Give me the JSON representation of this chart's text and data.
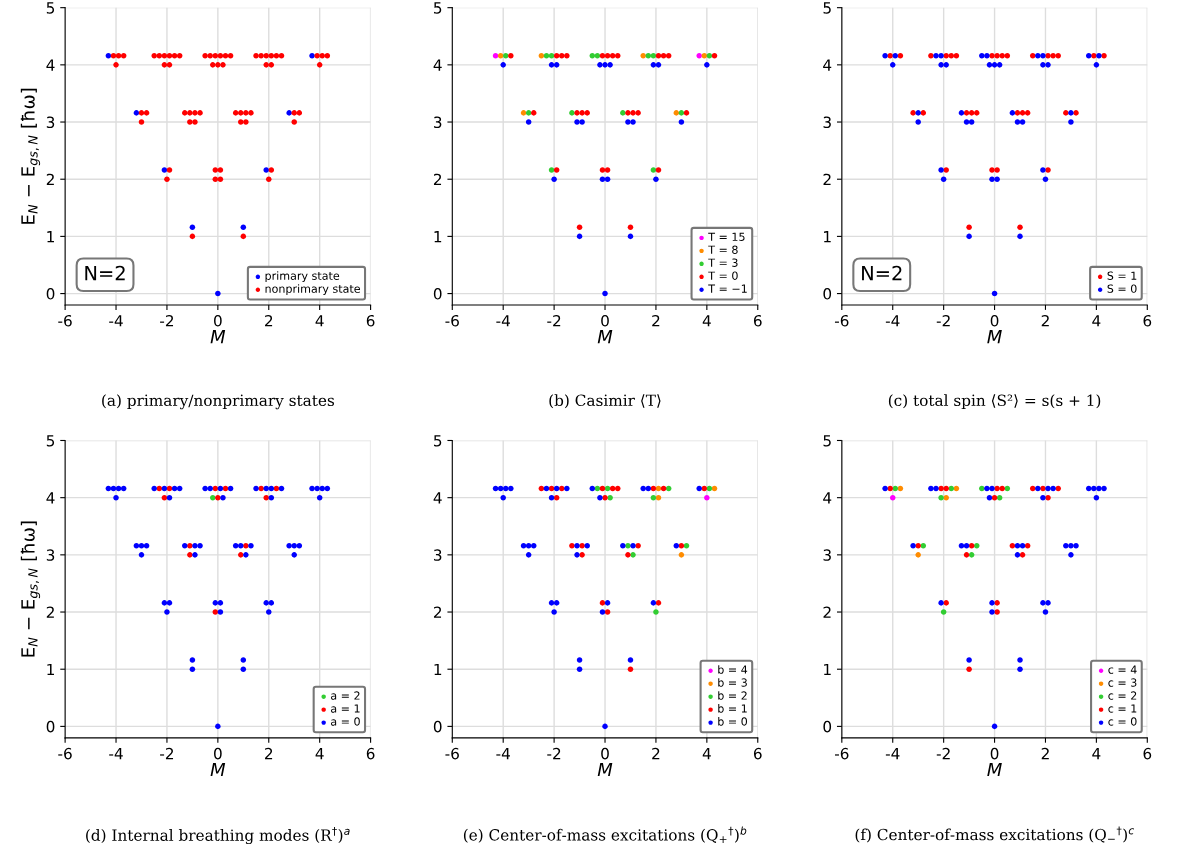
{
  "chart_data": [
    {
      "type": "scatter",
      "title": "(a) primary/nonprimary states",
      "xlabel": "M",
      "ylabel": "E$_{N}$ − E$_{gs,N}$ [ħω]",
      "xlim": [
        -6,
        6
      ],
      "ylim": [
        -0.2,
        5
      ],
      "xticks": [
        -6,
        -4,
        -2,
        0,
        2,
        4,
        6
      ],
      "yticks": [
        0,
        1,
        2,
        3,
        4,
        5
      ],
      "grid": true,
      "legend": "bottom right",
      "marker": "circle",
      "annotations": [
        "N=2"
      ],
      "series": [
        {
          "name": "primary state",
          "color": "#0000ff",
          "x": [
            0,
            -1,
            1,
            -2.1,
            1.9,
            -3.2,
            2.8,
            -4.3,
            3.7
          ],
          "values": [
            0,
            1.16,
            1.16,
            2.16,
            2.16,
            3.16,
            3.16,
            4.16,
            4.16
          ]
        },
        {
          "name": "nonprimary state",
          "color": "#ff0000",
          "x": [
            -1,
            1,
            -1.9,
            -0.1,
            0.1,
            2.1,
            -2,
            -0.1,
            0.1,
            2,
            -3,
            -2.8,
            -1.3,
            -1.1,
            -0.9,
            -0.7,
            0.7,
            0.9,
            1.1,
            1.3,
            3,
            3.2,
            -3,
            -1.1,
            -0.9,
            0.9,
            1.1,
            3,
            -4.1,
            -3.9,
            -3.7,
            -2.5,
            -2.3,
            -2.1,
            -1.9,
            -1.7,
            -1.5,
            -0.5,
            -0.3,
            -0.1,
            0.1,
            0.3,
            0.5,
            1.5,
            1.7,
            1.9,
            2.1,
            2.3,
            2.5,
            3.9,
            4.1,
            4.3,
            -4,
            -2.1,
            -1.9,
            -0.2,
            0,
            0.2,
            1.9,
            2.1,
            4
          ],
          "values": [
            1,
            1,
            2.16,
            2.16,
            2.16,
            2.16,
            2,
            2,
            2,
            2,
            3.16,
            3.16,
            3.16,
            3.16,
            3.16,
            3.16,
            3.16,
            3.16,
            3.16,
            3.16,
            3.16,
            3.16,
            3,
            3,
            3,
            3,
            3,
            3,
            4.16,
            4.16,
            4.16,
            4.16,
            4.16,
            4.16,
            4.16,
            4.16,
            4.16,
            4.16,
            4.16,
            4.16,
            4.16,
            4.16,
            4.16,
            4.16,
            4.16,
            4.16,
            4.16,
            4.16,
            4.16,
            4.16,
            4.16,
            4.16,
            4,
            4,
            4,
            4,
            4,
            4,
            4,
            4,
            4
          ]
        }
      ]
    },
    {
      "type": "scatter",
      "title": "(b) Casimir ⟨T⟩",
      "xlabel": "M",
      "xlim": [
        -6,
        6
      ],
      "ylim": [
        -0.2,
        5
      ],
      "xticks": [
        -6,
        -4,
        -2,
        0,
        2,
        4,
        6
      ],
      "yticks": [
        0,
        1,
        2,
        3,
        4,
        5
      ],
      "grid": true,
      "legend": "bottom right",
      "marker": "circle",
      "series": [
        {
          "name": "T = 15",
          "color": "#ff00ff",
          "x": [
            -4.3,
            3.7
          ],
          "values": [
            4.16,
            4.16
          ]
        },
        {
          "name": "T = 8",
          "color": "#ff8c00",
          "x": [
            -4.1,
            -2.5,
            1.5,
            3.9,
            -3.2,
            2.8
          ],
          "values": [
            4.16,
            4.16,
            4.16,
            4.16,
            3.16,
            3.16
          ]
        },
        {
          "name": "T = 3",
          "color": "#32cd32",
          "x": [
            -3.9,
            -2.3,
            -2.1,
            -0.5,
            -0.3,
            1.7,
            1.9,
            4.1,
            -3,
            -1.3,
            0.7,
            3,
            -2.1,
            1.9
          ],
          "values": [
            4.16,
            4.16,
            4.16,
            4.16,
            4.16,
            4.16,
            4.16,
            4.16,
            3.16,
            3.16,
            3.16,
            3.16,
            2.16,
            2.16
          ]
        },
        {
          "name": "T = 0",
          "color": "#ff0000",
          "x": [
            -3.7,
            -1.9,
            -1.7,
            -1.5,
            -0.1,
            0.1,
            0.3,
            0.5,
            2.1,
            2.3,
            2.5,
            4.3,
            -2.8,
            -1.1,
            -0.9,
            -0.7,
            0.9,
            1.1,
            1.3,
            3.2,
            -1.9,
            -0.1,
            0.1,
            2.1,
            -1,
            1
          ],
          "values": [
            4.16,
            4.16,
            4.16,
            4.16,
            4.16,
            4.16,
            4.16,
            4.16,
            4.16,
            4.16,
            4.16,
            4.16,
            3.16,
            3.16,
            3.16,
            3.16,
            3.16,
            3.16,
            3.16,
            3.16,
            2.16,
            2.16,
            2.16,
            2.16,
            1.16,
            1.16
          ]
        },
        {
          "name": "T = −1",
          "color": "#0000ff",
          "x": [
            0,
            -1,
            1,
            -2,
            -0.1,
            0.1,
            2,
            -3,
            -1.1,
            -0.9,
            0.9,
            1.1,
            3,
            -4,
            -2.1,
            -1.9,
            -0.2,
            0,
            0.2,
            1.9,
            2.1,
            4
          ],
          "values": [
            0,
            1,
            1,
            2,
            2,
            2,
            2,
            3,
            3,
            3,
            3,
            3,
            3,
            4,
            4,
            4,
            4,
            4,
            4,
            4,
            4,
            4
          ]
        }
      ]
    },
    {
      "type": "scatter",
      "title": "(c) total spin ⟨S²⟩ = s(s + 1)",
      "xlabel": "M",
      "xlim": [
        -6,
        6
      ],
      "ylim": [
        -0.2,
        5
      ],
      "xticks": [
        -6,
        -4,
        -2,
        0,
        2,
        4,
        6
      ],
      "yticks": [
        0,
        1,
        2,
        3,
        4,
        5
      ],
      "grid": true,
      "legend": "bottom right",
      "marker": "circle",
      "annotations": [
        "N=2"
      ],
      "series": [
        {
          "name": "S = 1",
          "color": "#ff0000",
          "x": [
            -4.1,
            -3.7,
            -2.5,
            -1.9,
            -1.7,
            -1.5,
            -0.1,
            0.1,
            0.3,
            0.5,
            1.5,
            2.1,
            2.3,
            2.5,
            3.9,
            4.3,
            -3.2,
            -2.8,
            -1.1,
            -0.9,
            -0.7,
            0.9,
            1.1,
            1.3,
            2.8,
            3.2,
            -1.9,
            -0.1,
            0.1,
            2.1,
            -1,
            1
          ],
          "values": [
            4.16,
            4.16,
            4.16,
            4.16,
            4.16,
            4.16,
            4.16,
            4.16,
            4.16,
            4.16,
            4.16,
            4.16,
            4.16,
            4.16,
            4.16,
            4.16,
            3.16,
            3.16,
            3.16,
            3.16,
            3.16,
            3.16,
            3.16,
            3.16,
            3.16,
            3.16,
            2.16,
            2.16,
            2.16,
            2.16,
            1.16,
            1.16
          ]
        },
        {
          "name": "S = 0",
          "color": "#0000ff",
          "x": [
            -4.3,
            -3.9,
            -2.3,
            -2.1,
            -0.5,
            -0.3,
            1.7,
            1.9,
            3.7,
            4.1,
            -4,
            -2.1,
            -1.9,
            -0.2,
            0,
            0.2,
            1.9,
            2.1,
            4,
            -3,
            -1.3,
            0.7,
            3,
            -3,
            -1.1,
            -0.9,
            0.9,
            1.1,
            3,
            -2.1,
            1.9,
            -2,
            -0.1,
            0.1,
            2,
            -1,
            1,
            0
          ],
          "values": [
            4.16,
            4.16,
            4.16,
            4.16,
            4.16,
            4.16,
            4.16,
            4.16,
            4.16,
            4.16,
            4,
            4,
            4,
            4,
            4,
            4,
            4,
            4,
            4,
            3.16,
            3.16,
            3.16,
            3.16,
            3,
            3,
            3,
            3,
            3,
            3,
            2.16,
            2.16,
            2,
            2,
            2,
            2,
            1,
            1,
            0
          ]
        }
      ]
    },
    {
      "type": "scatter",
      "title": "(d) Internal breathing modes (R$^{†}$)$^{a}$",
      "xlabel": "M",
      "ylabel": "E$_{N}$ − E$_{gs,N}$ [ħω]",
      "xlim": [
        -6,
        6
      ],
      "ylim": [
        -0.2,
        5
      ],
      "xticks": [
        -6,
        -4,
        -2,
        0,
        2,
        4,
        6
      ],
      "yticks": [
        0,
        1,
        2,
        3,
        4,
        5
      ],
      "grid": true,
      "legend": "bottom right",
      "marker": "circle",
      "series": [
        {
          "name": "a = 2",
          "color": "#32cd32",
          "x": [
            -0.2
          ],
          "values": [
            4
          ]
        },
        {
          "name": "a = 1",
          "color": "#ff0000",
          "x": [
            -2.3,
            -1.9,
            -0.1,
            0.3,
            1.7,
            2.3,
            -2.1,
            0,
            1.9,
            -1.1,
            1.1,
            -1.1,
            0.9,
            -0.1
          ],
          "values": [
            4.16,
            4.16,
            4.16,
            4.16,
            4.16,
            4.16,
            4,
            4,
            4,
            3.16,
            3.16,
            3,
            3,
            2
          ]
        },
        {
          "name": "a = 0",
          "color": "#0000ff",
          "x": [
            -4.3,
            -4.1,
            -3.9,
            -3.7,
            -2.5,
            -2.1,
            -1.7,
            -1.5,
            -0.5,
            -0.3,
            0.1,
            0.5,
            1.5,
            1.9,
            2.1,
            2.5,
            3.7,
            3.9,
            4.1,
            4.3,
            -4,
            -1.9,
            0.2,
            2.1,
            4,
            -3.2,
            -3,
            -2.8,
            -1.3,
            -0.9,
            -0.7,
            0.7,
            0.9,
            1.3,
            2.8,
            3,
            3.2,
            -3,
            -0.9,
            1.1,
            3,
            -2.1,
            -1.9,
            -0.1,
            0.1,
            1.9,
            2.1,
            -2,
            0.1,
            2,
            -1,
            1,
            -1,
            1,
            0
          ],
          "values": [
            4.16,
            4.16,
            4.16,
            4.16,
            4.16,
            4.16,
            4.16,
            4.16,
            4.16,
            4.16,
            4.16,
            4.16,
            4.16,
            4.16,
            4.16,
            4.16,
            4.16,
            4.16,
            4.16,
            4.16,
            4,
            4,
            4,
            4,
            4,
            3.16,
            3.16,
            3.16,
            3.16,
            3.16,
            3.16,
            3.16,
            3.16,
            3.16,
            3.16,
            3.16,
            3.16,
            3,
            3,
            3,
            3,
            2.16,
            2.16,
            2.16,
            2.16,
            2.16,
            2.16,
            2,
            2,
            2,
            1.16,
            1.16,
            1,
            1,
            0
          ]
        }
      ]
    },
    {
      "type": "scatter",
      "title": "(e) Center-of-mass excitations (Q$_{+}$$^{†}$)$^{b}$",
      "xlabel": "M",
      "xlim": [
        -6,
        6
      ],
      "ylim": [
        -0.2,
        5
      ],
      "xticks": [
        -6,
        -4,
        -2,
        0,
        2,
        4,
        6
      ],
      "yticks": [
        0,
        1,
        2,
        3,
        4,
        5
      ],
      "grid": true,
      "legend": "bottom right",
      "marker": "circle",
      "series": [
        {
          "name": "b = 4",
          "color": "#ff00ff",
          "x": [
            4
          ],
          "values": [
            4
          ]
        },
        {
          "name": "b = 3",
          "color": "#ff8c00",
          "x": [
            2.1,
            4.3,
            2.1,
            3
          ],
          "values": [
            4.16,
            4.16,
            4,
            3
          ]
        },
        {
          "name": "b = 2",
          "color": "#32cd32",
          "x": [
            -0.3,
            0.1,
            2.5,
            4.1,
            0.2,
            1.9,
            0.9,
            3.2,
            1.1,
            2
          ],
          "values": [
            4.16,
            4.16,
            4.16,
            4.16,
            4,
            4,
            3.16,
            3.16,
            3,
            2
          ]
        },
        {
          "name": "b = 1",
          "color": "#ff0000",
          "x": [
            -2.5,
            -2.1,
            -1.7,
            -0.1,
            0.3,
            0.5,
            1.9,
            2.3,
            3.9,
            -1.9,
            0,
            -1.3,
            -0.9,
            1.3,
            3,
            -0.9,
            0.9,
            -0.1,
            2.1,
            0.1,
            1
          ],
          "values": [
            4.16,
            4.16,
            4.16,
            4.16,
            4.16,
            4.16,
            4.16,
            4.16,
            4.16,
            4,
            4,
            3.16,
            3.16,
            3.16,
            3.16,
            3,
            3,
            2.16,
            2.16,
            2,
            1
          ]
        },
        {
          "name": "b = 0",
          "color": "#0000ff",
          "x": [
            -4.3,
            -4.1,
            -3.9,
            -3.7,
            -2.3,
            -1.9,
            -1.5,
            -0.5,
            1.5,
            1.7,
            3.7,
            -4,
            -2.1,
            -0.2,
            -3.2,
            -3,
            -2.8,
            -1.1,
            -0.7,
            0.7,
            1.1,
            2.8,
            -3,
            -1.1,
            -2.1,
            -1.9,
            0.1,
            1.9,
            -2,
            -0.1,
            -1,
            1,
            -1,
            0
          ],
          "values": [
            4.16,
            4.16,
            4.16,
            4.16,
            4.16,
            4.16,
            4.16,
            4.16,
            4.16,
            4.16,
            4.16,
            4,
            4,
            4,
            3.16,
            3.16,
            3.16,
            3.16,
            3.16,
            3.16,
            3.16,
            3.16,
            3,
            3,
            2.16,
            2.16,
            2.16,
            2.16,
            2,
            2,
            1.16,
            1.16,
            1,
            0
          ]
        }
      ]
    },
    {
      "type": "scatter",
      "title": "(f) Center-of-mass excitations (Q$_{−}$$^{†}$)$^{c}$",
      "xlabel": "M",
      "xlim": [
        -6,
        6
      ],
      "ylim": [
        -0.2,
        5
      ],
      "xticks": [
        -6,
        -4,
        -2,
        0,
        2,
        4,
        6
      ],
      "yticks": [
        0,
        1,
        2,
        3,
        4,
        5
      ],
      "grid": true,
      "legend": "bottom right",
      "marker": "circle",
      "series": [
        {
          "name": "c = 4",
          "color": "#ff00ff",
          "x": [
            -4
          ],
          "values": [
            4
          ]
        },
        {
          "name": "c = 3",
          "color": "#ff8c00",
          "x": [
            -3.7,
            -1.5,
            -1.9,
            -3
          ],
          "values": [
            4.16,
            4.16,
            4,
            3
          ]
        },
        {
          "name": "c = 2",
          "color": "#32cd32",
          "x": [
            -3.9,
            -1.7,
            -0.5,
            0.5,
            -2.1,
            0.2,
            -2.8,
            -0.7,
            -0.9,
            -2
          ],
          "values": [
            4.16,
            4.16,
            4.16,
            4.16,
            4,
            4,
            3.16,
            3.16,
            3,
            2
          ]
        },
        {
          "name": "c = 1",
          "color": "#ff0000",
          "x": [
            -4.1,
            -2.1,
            -1.9,
            0.1,
            0.3,
            1.5,
            1.9,
            2.5,
            0,
            2.1,
            -3,
            -0.9,
            0.7,
            1.3,
            -1.1,
            1.1,
            -1.9,
            0.1,
            0.1,
            -1
          ],
          "values": [
            4.16,
            4.16,
            4.16,
            4.16,
            4.16,
            4.16,
            4.16,
            4.16,
            4,
            4,
            3.16,
            3.16,
            3.16,
            3.16,
            3,
            3,
            2.16,
            2.16,
            2,
            1
          ]
        },
        {
          "name": "c = 0",
          "color": "#0000ff",
          "x": [
            -4.3,
            -2.5,
            -2.3,
            -0.3,
            -0.1,
            1.7,
            2.1,
            2.3,
            3.7,
            3.9,
            4.1,
            4.3,
            -0.2,
            1.9,
            4,
            -3.2,
            -1.3,
            -1.1,
            0.9,
            1.1,
            2.8,
            3,
            3.2,
            0.9,
            3,
            -2.1,
            -0.1,
            1.9,
            2.1,
            -0.1,
            2,
            -1,
            1,
            1,
            0
          ],
          "values": [
            4.16,
            4.16,
            4.16,
            4.16,
            4.16,
            4.16,
            4.16,
            4.16,
            4.16,
            4.16,
            4.16,
            4.16,
            4,
            4,
            4,
            3.16,
            3.16,
            3.16,
            3.16,
            3.16,
            3.16,
            3.16,
            3.16,
            3,
            3,
            2.16,
            2.16,
            2.16,
            2.16,
            2,
            2,
            1.16,
            1.16,
            1,
            0
          ]
        }
      ]
    }
  ]
}
